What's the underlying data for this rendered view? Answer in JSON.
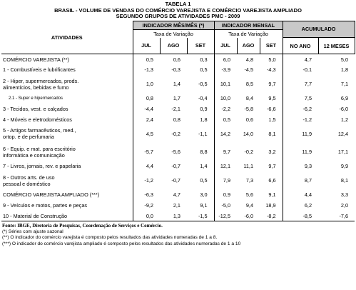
{
  "header": {
    "title": [
      "TABELA 1",
      "BRASIL - VOLUME DE VENDAS DO COMÉRCIO VAREJISTA E COMÉRCIO VAREJISTA AMPLIADO",
      "SEGUNDO GRUPOS DE ATIVIDADES PMC - 2009"
    ]
  },
  "table": {
    "activities_header": "ATIVIDADES",
    "groups": [
      "INDICADOR MÊS/MÊS (*)",
      "INDICADOR MENSAL",
      "ACUMULADO"
    ],
    "subheader": "Taxa de Variação",
    "columns": [
      "JUL",
      "AGO",
      "SET",
      "JUL",
      "AGO",
      "SET",
      "NO ANO",
      "12 MESES"
    ],
    "rows": [
      {
        "label": [
          "COMÉRCIO VAREJISTA (**)"
        ],
        "values": [
          "0,5",
          "0,6",
          "0,3",
          "6,0",
          "4,8",
          "5,0",
          "4,7",
          "5,0"
        ]
      },
      {
        "label": [
          "1 - Combustíveis e lubrificantes"
        ],
        "values": [
          "-1,3",
          "-0,3",
          "0,5",
          "-3,9",
          "-4,5",
          "-4,3",
          "-0,1",
          "1,8"
        ]
      },
      {
        "label": [
          "2 - Hiper, supermercados, prods.",
          "alimentícios, bebidas e fumo"
        ],
        "values": [
          "1,0",
          "1,4",
          "-0,5",
          "10,1",
          "8,5",
          "9,7",
          "7,7",
          "7,1"
        ]
      },
      {
        "label": [
          "2.1 - Super e hipermercados"
        ],
        "values": [
          "0,8",
          "1,7",
          "-0,4",
          "10,0",
          "8,4",
          "9,5",
          "7,5",
          "6,9"
        ]
      },
      {
        "label": [
          "3 - Tecidos, vest. e calçados"
        ],
        "values": [
          "-4,4",
          "-2,1",
          "0,9",
          "-2,2",
          "-5,8",
          "-6,6",
          "-6,2",
          "-6,0"
        ]
      },
      {
        "label": [
          "4 - Móveis e eletrodomésticos"
        ],
        "values": [
          "2,4",
          "0,8",
          "1,8",
          "0,5",
          "0,6",
          "1,5",
          "-1,2",
          "1,2"
        ]
      },
      {
        "label": [
          "5 - Artigos farmacêuticos, med.,",
          "ortop. e de perfumaria"
        ],
        "values": [
          "4,5",
          "-0,2",
          "-1,1",
          "14,2",
          "14,0",
          "8,1",
          "11,9",
          "12,4"
        ]
      },
      {
        "label": [
          "6 - Equip. e mat. para escritório",
          "informática e comunicação"
        ],
        "values": [
          "-5,7",
          "-5,6",
          "8,8",
          "9,7",
          "-0,2",
          "3,2",
          "11,9",
          "17,1"
        ]
      },
      {
        "label": [
          "7 - Livros, jornais, rev. e papelaria"
        ],
        "values": [
          "4,4",
          "-0,7",
          "1,4",
          "12,1",
          "11,1",
          "9,7",
          "9,3",
          "9,9"
        ]
      },
      {
        "label": [
          "8 - Outros arts. de uso",
          "pessoal e doméstico"
        ],
        "values": [
          "-1,2",
          "-0,7",
          "0,5",
          "7,9",
          "7,3",
          "6,6",
          "8,7",
          "8,1"
        ]
      },
      {
        "label": [
          "COMÉRCIO VAREJISTA AMPLIADO (***)"
        ],
        "values": [
          "-6,3",
          "4,7",
          "3,0",
          "0,9",
          "5,6",
          "9,1",
          "4,4",
          "3,3"
        ]
      },
      {
        "label": [
          "9 - Veículos e motos, partes e peças"
        ],
        "values": [
          "-9,2",
          "2,1",
          "9,1",
          "-5,0",
          "9,4",
          "18,9",
          "6,2",
          "2,0"
        ]
      },
      {
        "label": [
          "10 - Material de Construção"
        ],
        "values": [
          "0,0",
          "1,3",
          "-1,5",
          "-12,5",
          "-6,0",
          "-8,2",
          "-8,5",
          "-7,6"
        ]
      }
    ]
  },
  "footer": [
    "Fonte: IBGE, Diretoria de Pesquisas, Coordenação de Serviços e Comércio.",
    "(*) Séries com ajuste sazonal",
    "(**) O indicador do comércio varejista é composto pelos resultados das atividades numeradas de 1 a 8.",
    "(***) O indicador do comércio varejista ampliado é composto pelos resultados das atividades numeradas de 1 a 10"
  ]
}
